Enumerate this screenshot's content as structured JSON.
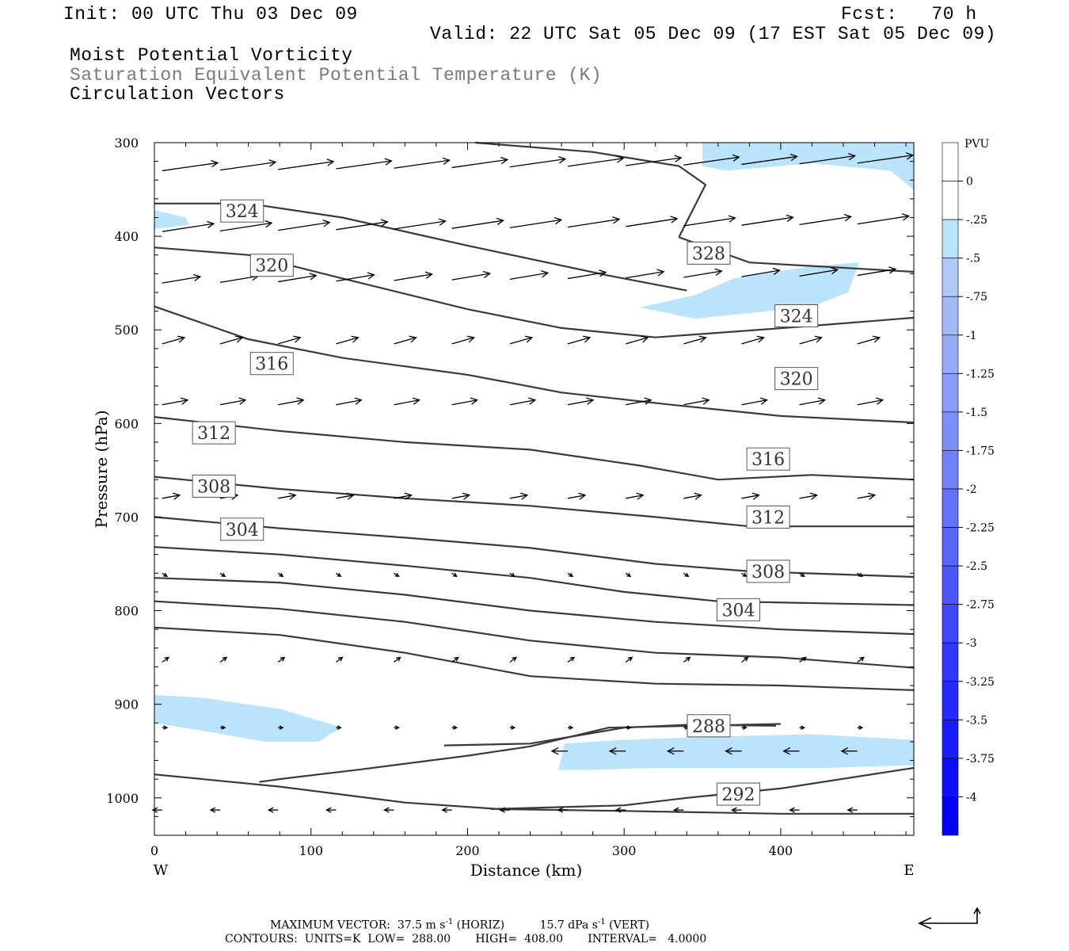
{
  "header": {
    "init": "Init: 00 UTC Thu 03 Dec 09",
    "fcst": "Fcst:   70 h",
    "valid": "Valid: 22 UTC Sat 05 Dec 09 (17 EST Sat 05 Dec 09)",
    "field1": "Moist Potential Vorticity",
    "field2": "Saturation Equivalent Potential Temperature (K)",
    "field3": "Circulation Vectors"
  },
  "footer": {
    "maxvec_label": "MAXIMUM VECTOR:",
    "maxvec_horiz": "37.5 m s",
    "maxvec_horiz_tag": "(HORIZ)",
    "maxvec_vert": "15.7 dPa s",
    "maxvec_vert_tag": "(VERT)",
    "exp": "-1",
    "contours_line": "CONTOURS:  UNITS=K  LOW=  288.00       HIGH=  408.00       INTERVAL=   4.0000"
  },
  "colors": {
    "contour": "#3a3a3a",
    "mpv_negative_fill": "#b9e4fb",
    "colorbar_top": "#ffffff",
    "colorbar_bottom": "#0000ff"
  },
  "chart_data": {
    "type": "cross-section",
    "xlabel": "Distance (km)",
    "ylabel": "Pressure (hPa)",
    "xlim": [
      0,
      485
    ],
    "ylim": [
      1040,
      300
    ],
    "y_scale": "linear",
    "x_ticks": [
      0,
      100,
      200,
      300,
      400
    ],
    "y_ticks": [
      300,
      400,
      500,
      600,
      700,
      800,
      900,
      1000
    ],
    "x_end_labels": {
      "left": "W",
      "right": "E"
    },
    "contour_levels_labeled": [
      {
        "label": "324",
        "x": 56,
        "p": 373
      },
      {
        "label": "320",
        "x": 75,
        "p": 431
      },
      {
        "label": "316",
        "x": 75,
        "p": 536
      },
      {
        "label": "312",
        "x": 38,
        "p": 610
      },
      {
        "label": "308",
        "x": 38,
        "p": 667
      },
      {
        "label": "304",
        "x": 56,
        "p": 713
      },
      {
        "label": "328",
        "x": 354,
        "p": 418
      },
      {
        "label": "324",
        "x": 410,
        "p": 485
      },
      {
        "label": "320",
        "x": 410,
        "p": 552
      },
      {
        "label": "316",
        "x": 392,
        "p": 638
      },
      {
        "label": "312",
        "x": 392,
        "p": 700
      },
      {
        "label": "308",
        "x": 392,
        "p": 758
      },
      {
        "label": "304",
        "x": 373,
        "p": 799
      },
      {
        "label": "288",
        "x": 354,
        "p": 923
      },
      {
        "label": "292",
        "x": 373,
        "p": 996
      }
    ],
    "contours": [
      [
        [
          0,
          365
        ],
        [
          60,
          365
        ],
        [
          120,
          380
        ],
        [
          200,
          410
        ],
        [
          290,
          442
        ],
        [
          340,
          458
        ]
      ],
      [
        [
          0,
          412
        ],
        [
          60,
          420
        ],
        [
          120,
          445
        ],
        [
          200,
          478
        ],
        [
          260,
          498
        ],
        [
          320,
          508
        ],
        [
          410,
          497
        ],
        [
          485,
          487
        ]
      ],
      [
        [
          0,
          475
        ],
        [
          60,
          510
        ],
        [
          120,
          530
        ],
        [
          200,
          548
        ],
        [
          260,
          567
        ],
        [
          330,
          580
        ],
        [
          400,
          592
        ],
        [
          485,
          599
        ]
      ],
      [
        [
          0,
          593
        ],
        [
          80,
          608
        ],
        [
          160,
          620
        ],
        [
          240,
          628
        ],
        [
          310,
          645
        ],
        [
          360,
          660
        ],
        [
          420,
          655
        ],
        [
          485,
          660
        ]
      ],
      [
        [
          0,
          657
        ],
        [
          80,
          670
        ],
        [
          160,
          680
        ],
        [
          240,
          688
        ],
        [
          320,
          700
        ],
        [
          380,
          710
        ],
        [
          485,
          710
        ]
      ],
      [
        [
          0,
          700
        ],
        [
          80,
          712
        ],
        [
          160,
          722
        ],
        [
          240,
          733
        ],
        [
          320,
          750
        ],
        [
          380,
          758
        ],
        [
          485,
          764
        ]
      ],
      [
        [
          0,
          732
        ],
        [
          80,
          740
        ],
        [
          160,
          752
        ],
        [
          240,
          765
        ],
        [
          300,
          780
        ],
        [
          360,
          790
        ],
        [
          485,
          794
        ]
      ],
      [
        [
          0,
          765
        ],
        [
          80,
          770
        ],
        [
          160,
          783
        ],
        [
          240,
          800
        ],
        [
          320,
          812
        ],
        [
          400,
          820
        ],
        [
          485,
          825
        ]
      ],
      [
        [
          0,
          790
        ],
        [
          80,
          798
        ],
        [
          160,
          812
        ],
        [
          240,
          832
        ],
        [
          320,
          845
        ],
        [
          400,
          850
        ],
        [
          485,
          861
        ]
      ],
      [
        [
          0,
          818
        ],
        [
          80,
          826
        ],
        [
          160,
          845
        ],
        [
          240,
          870
        ],
        [
          320,
          878
        ],
        [
          400,
          880
        ],
        [
          485,
          885
        ]
      ],
      [
        [
          0,
          975
        ],
        [
          80,
          988
        ],
        [
          160,
          1005
        ],
        [
          220,
          1012
        ],
        [
          300,
          1014
        ],
        [
          400,
          1017
        ],
        [
          485,
          1017
        ]
      ],
      [
        [
          215,
          1012
        ],
        [
          300,
          1008
        ],
        [
          340,
          1000
        ],
        [
          400,
          990
        ],
        [
          485,
          968
        ]
      ]
    ],
    "mpv_negative_regions": "light blue shading (< -0.25 PVU) near 340-470 km aloft, 310-440 km at 430-480 hPa, 0-120 km at 890-940 hPa, and 260-485 km at 940-970 hPa",
    "colorbar": {
      "units": "PVU",
      "labels": [
        "0",
        "-.25",
        "-.5",
        "-.75",
        "-1",
        "-1.25",
        "-1.5",
        "-1.75",
        "-2",
        "-2.25",
        "-2.5",
        "-2.75",
        "-3",
        "-3.25",
        "-3.5",
        "-3.75",
        "-4"
      ]
    }
  }
}
